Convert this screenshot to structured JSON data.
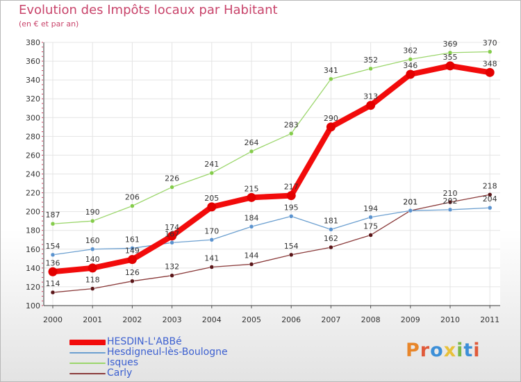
{
  "title": "Evolution des Impôts locaux par Habitant",
  "subtitle": "(en € et par an)",
  "logo": {
    "text": "Proxiti",
    "letter_colors": [
      "#e8862a",
      "#e05a3a",
      "#3c8fd8",
      "#e8c13a",
      "#7ab84a",
      "#3c8fd8",
      "#e05a3a"
    ]
  },
  "chart_data": {
    "type": "line",
    "categories": [
      "2000",
      "2001",
      "2002",
      "2003",
      "2004",
      "2005",
      "2006",
      "2007",
      "2008",
      "2009",
      "2010",
      "2011"
    ],
    "ylim": [
      100,
      380
    ],
    "yticks": [
      100,
      120,
      140,
      160,
      180,
      200,
      220,
      240,
      260,
      280,
      300,
      320,
      340,
      360,
      380
    ],
    "grid": true,
    "legend_position": "bottom-left",
    "series": [
      {
        "name": "Carly",
        "color": "#8a3a3a",
        "marker": "#5a1518",
        "values": [
          114,
          118,
          126,
          132,
          141,
          144,
          154,
          162,
          175,
          201,
          210,
          218
        ]
      },
      {
        "name": "Hesdigneul-lès-Boulogne",
        "color": "#6b9fd0",
        "marker": "#5b93cf",
        "values": [
          154,
          160,
          161,
          167,
          170,
          184,
          195,
          181,
          194,
          201,
          202,
          204
        ]
      },
      {
        "name": "Isques",
        "color": "#9bd66b",
        "marker": "#84cc4a",
        "values": [
          187,
          190,
          206,
          226,
          241,
          264,
          283,
          341,
          352,
          362,
          369,
          370
        ]
      },
      {
        "name": "HESDIN-L'ABBé",
        "color": "#f20b0b",
        "marker": "#e30000",
        "values": [
          136,
          140,
          149,
          174,
          205,
          215,
          217,
          290,
          313,
          346,
          355,
          348
        ]
      }
    ],
    "data_labels": [
      [
        "114",
        "118",
        "126",
        "132",
        "141",
        "144",
        "154",
        "162",
        "175",
        "201",
        "210",
        "218"
      ],
      [
        "154",
        "160",
        "161",
        "167",
        "170",
        "184",
        "195",
        "181",
        "194",
        "201",
        "202",
        "204"
      ],
      [
        "187",
        "190",
        "206",
        "226",
        "241",
        "264",
        "283",
        "341",
        "352",
        "362",
        "369",
        "370"
      ],
      [
        "136",
        "140",
        "149",
        "174",
        "205",
        "215",
        "217",
        "290",
        "313",
        "346",
        "355",
        "348"
      ]
    ]
  },
  "legend": [
    {
      "label": "HESDIN-L'ABBé",
      "color": "#f20b0b"
    },
    {
      "label": "Hesdigneul-lès-Boulogne",
      "color": "#6b9fd0"
    },
    {
      "label": "Isques",
      "color": "#9bd66b"
    },
    {
      "label": "Carly",
      "color": "#8a3a3a"
    }
  ]
}
